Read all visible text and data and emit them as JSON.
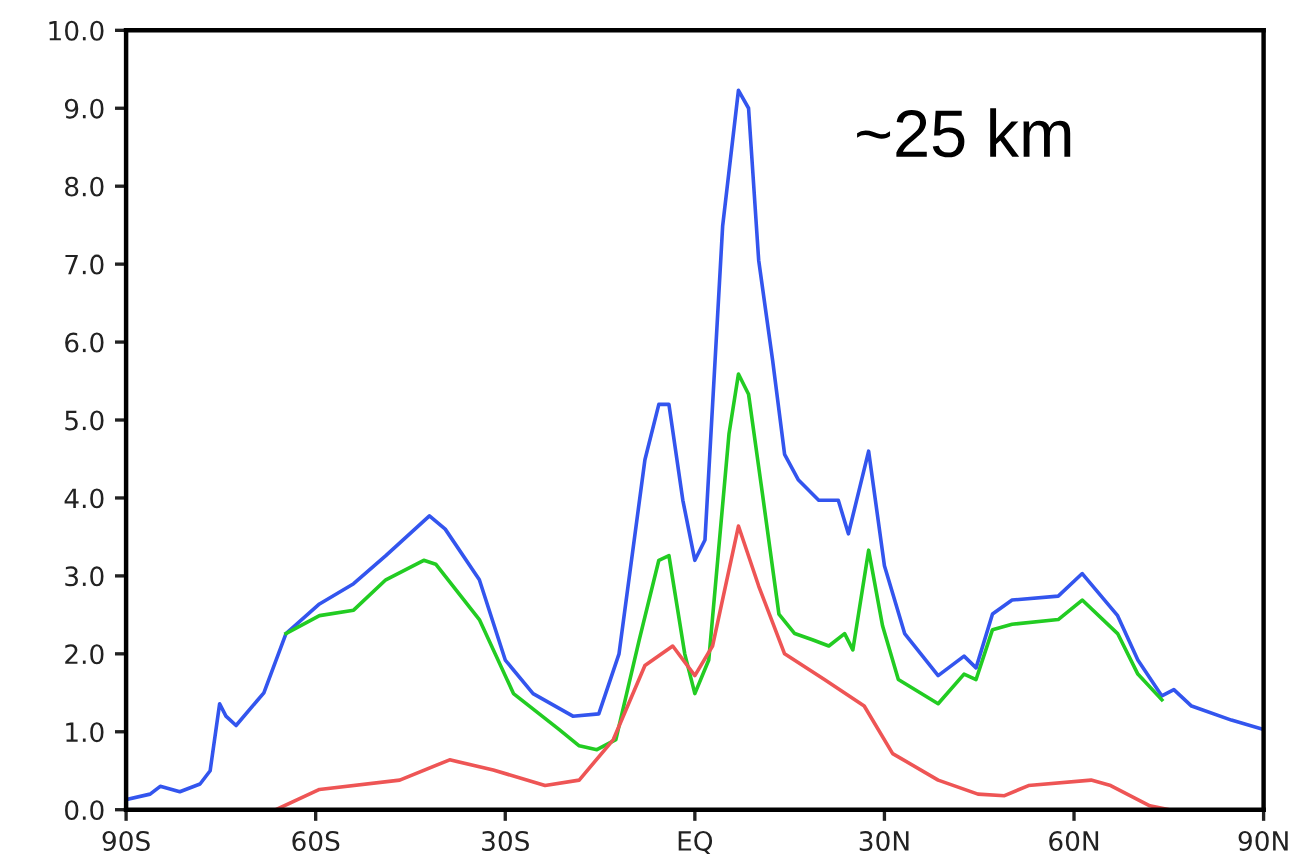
{
  "chart_data": {
    "type": "line",
    "annotations": [
      "~25 km"
    ],
    "xlim": [
      -90,
      90
    ],
    "xticks": [
      {
        "value": -90,
        "label": "90S"
      },
      {
        "value": -60,
        "label": "60S"
      },
      {
        "value": -30,
        "label": "30S"
      },
      {
        "value": 0,
        "label": "EQ"
      },
      {
        "value": 30,
        "label": "30N"
      },
      {
        "value": 60,
        "label": "60N"
      },
      {
        "value": 90,
        "label": "90N"
      }
    ],
    "ylim": [
      0,
      10
    ],
    "yticks": [
      {
        "value": 0,
        "label": "0.0"
      },
      {
        "value": 1,
        "label": "1.0"
      },
      {
        "value": 2,
        "label": "2.0"
      },
      {
        "value": 3,
        "label": "3.0"
      },
      {
        "value": 4,
        "label": "4.0"
      },
      {
        "value": 5,
        "label": "5.0"
      },
      {
        "value": 6,
        "label": "6.0"
      },
      {
        "value": 7,
        "label": "7.0"
      },
      {
        "value": 8,
        "label": "8.0"
      },
      {
        "value": 9,
        "label": "9.0"
      },
      {
        "value": 10,
        "label": "10.0"
      }
    ],
    "series": [
      {
        "color": "#3355ee",
        "x": [
          -90,
          -86.2,
          -84.6,
          -81.5,
          -78.3,
          -76.7,
          -75.2,
          -74.2,
          -72.6,
          -68.2,
          -64.7,
          -59.4,
          -54.0,
          -48.9,
          -42.0,
          -39.5,
          -34.1,
          -30.0,
          -25.6,
          -19.3,
          -15.2,
          -12.0,
          -7.9,
          -5.7,
          -4.1,
          -1.9,
          0,
          1.6,
          4.4,
          6.9,
          8.5,
          10.1,
          12.3,
          14.2,
          16.4,
          19.6,
          22.7,
          24.3,
          27.5,
          30.0,
          33.2,
          38.5,
          42.6,
          44.5,
          47.1,
          50.2,
          57.5,
          61.3,
          66.9,
          70.1,
          73.9,
          75.8,
          78.6,
          84.9,
          90
        ],
        "values": [
          0.13,
          0.2,
          0.3,
          0.23,
          0.33,
          0.5,
          1.36,
          1.2,
          1.08,
          1.5,
          2.26,
          2.64,
          2.9,
          3.26,
          3.77,
          3.6,
          2.95,
          1.92,
          1.49,
          1.2,
          1.23,
          2.0,
          4.49,
          5.2,
          5.2,
          3.97,
          3.2,
          3.46,
          7.49,
          9.23,
          9.0,
          7.05,
          5.77,
          4.56,
          4.23,
          3.97,
          3.97,
          3.54,
          4.6,
          3.13,
          2.26,
          1.72,
          1.97,
          1.82,
          2.51,
          2.69,
          2.74,
          3.03,
          2.49,
          1.92,
          1.46,
          1.54,
          1.33,
          1.15,
          1.03
        ]
      },
      {
        "color": "#22cc22",
        "x": [
          -64.7,
          -59.4,
          -54.0,
          -48.9,
          -42.9,
          -41.0,
          -34.1,
          -28.7,
          -21.5,
          -18.3,
          -15.5,
          -12.5,
          -8.8,
          -5.7,
          -4.1,
          -1.6,
          0,
          2.2,
          5.4,
          6.9,
          8.5,
          10.7,
          13.3,
          15.8,
          18.6,
          21.2,
          23.7,
          25.0,
          27.5,
          29.7,
          32.2,
          38.5,
          42.6,
          44.5,
          47.1,
          50.2,
          57.5,
          61.3,
          66.9,
          70.1,
          73.9
        ],
        "values": [
          2.26,
          2.49,
          2.56,
          2.95,
          3.2,
          3.15,
          2.44,
          1.49,
          1.03,
          0.82,
          0.77,
          0.9,
          2.18,
          3.2,
          3.26,
          2.0,
          1.49,
          1.92,
          4.82,
          5.59,
          5.33,
          4.05,
          2.51,
          2.26,
          2.18,
          2.1,
          2.26,
          2.05,
          3.33,
          2.36,
          1.67,
          1.36,
          1.74,
          1.67,
          2.31,
          2.38,
          2.44,
          2.69,
          2.26,
          1.74,
          1.41
        ]
      },
      {
        "color": "#ee5555",
        "x": [
          -90,
          -66.3,
          -59.4,
          -46.7,
          -38.8,
          -31.9,
          -23.7,
          -18.3,
          -12.9,
          -7.9,
          -3.5,
          0,
          2.8,
          6.9,
          10.1,
          14.2,
          20.5,
          26.8,
          31.3,
          38.5,
          44.8,
          49.0,
          52.8,
          62.7,
          65.8,
          72.0,
          75.1,
          90
        ],
        "values": [
          0,
          0,
          0.26,
          0.38,
          0.64,
          0.51,
          0.31,
          0.38,
          0.9,
          1.85,
          2.1,
          1.72,
          2.1,
          3.64,
          2.87,
          2.0,
          1.67,
          1.33,
          0.72,
          0.38,
          0.2,
          0.18,
          0.31,
          0.38,
          0.31,
          0.05,
          0,
          0
        ]
      }
    ]
  }
}
